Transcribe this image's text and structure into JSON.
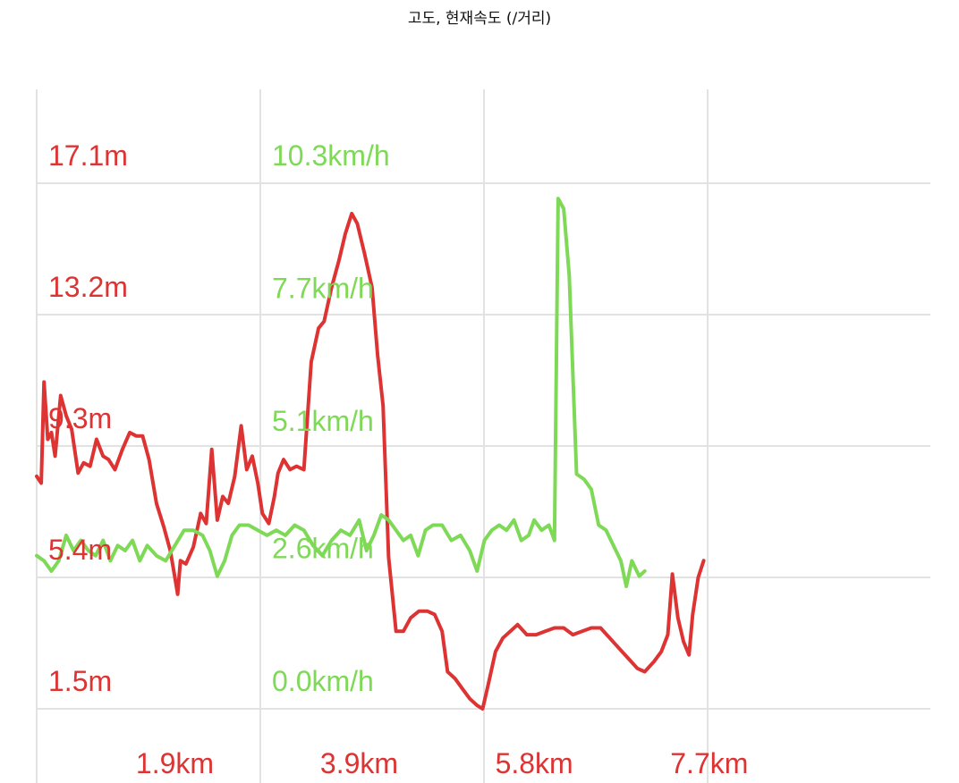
{
  "chart_data": {
    "type": "line",
    "title": "고도, 현재속도 (/거리)",
    "xlabel": "",
    "x_unit": "km",
    "xlim": [
      0.4,
      10.1
    ],
    "x_ticks": [
      "1.9km",
      "3.9km",
      "5.8km",
      "7.7km"
    ],
    "x_tick_values": [
      1.9,
      3.9,
      5.8,
      7.7
    ],
    "grid": true,
    "legend": "none",
    "y_axes": [
      {
        "series": "elevation",
        "unit": "m",
        "ylim": [
          1.5,
          17.1
        ],
        "tick_values": [
          1.5,
          5.4,
          9.3,
          13.2,
          17.1
        ],
        "ticks": [
          "1.5m",
          "5.4m",
          "9.3m",
          "13.2m",
          "17.1m"
        ]
      },
      {
        "series": "speed",
        "unit": "km/h",
        "ylim": [
          0.0,
          10.3
        ],
        "tick_values": [
          0.0,
          2.6,
          5.1,
          7.7,
          10.3
        ],
        "ticks": [
          "0.0km/h",
          "2.6km/h",
          "5.1km/h",
          "7.7km/h",
          "10.3km/h"
        ]
      }
    ],
    "series": [
      {
        "key": "elevation",
        "color": "#dd3333",
        "points": [
          [
            0.4,
            8.4
          ],
          [
            0.45,
            8.2
          ],
          [
            0.48,
            11.2
          ],
          [
            0.52,
            9.5
          ],
          [
            0.56,
            9.7
          ],
          [
            0.6,
            9.0
          ],
          [
            0.66,
            10.8
          ],
          [
            0.72,
            10.2
          ],
          [
            0.78,
            9.8
          ],
          [
            0.85,
            8.5
          ],
          [
            0.91,
            8.8
          ],
          [
            0.98,
            8.7
          ],
          [
            1.05,
            9.5
          ],
          [
            1.12,
            9.0
          ],
          [
            1.18,
            8.9
          ],
          [
            1.25,
            8.6
          ],
          [
            1.33,
            9.2
          ],
          [
            1.41,
            9.7
          ],
          [
            1.48,
            9.6
          ],
          [
            1.55,
            9.6
          ],
          [
            1.62,
            8.9
          ],
          [
            1.7,
            7.6
          ],
          [
            1.78,
            6.9
          ],
          [
            1.85,
            6.2
          ],
          [
            1.9,
            5.4
          ],
          [
            1.93,
            4.9
          ],
          [
            1.96,
            5.9
          ],
          [
            2.02,
            5.8
          ],
          [
            2.1,
            6.3
          ],
          [
            2.18,
            7.3
          ],
          [
            2.24,
            7.0
          ],
          [
            2.3,
            9.2
          ],
          [
            2.36,
            7.1
          ],
          [
            2.42,
            7.8
          ],
          [
            2.48,
            7.6
          ],
          [
            2.55,
            8.4
          ],
          [
            2.62,
            9.9
          ],
          [
            2.68,
            8.6
          ],
          [
            2.74,
            9.0
          ],
          [
            2.8,
            8.2
          ],
          [
            2.85,
            7.3
          ],
          [
            2.92,
            7.0
          ],
          [
            2.98,
            7.8
          ],
          [
            3.02,
            8.5
          ],
          [
            3.08,
            8.9
          ],
          [
            3.15,
            8.6
          ],
          [
            3.22,
            8.7
          ],
          [
            3.3,
            8.6
          ],
          [
            3.38,
            11.8
          ],
          [
            3.46,
            12.8
          ],
          [
            3.52,
            13.0
          ],
          [
            3.6,
            14.0
          ],
          [
            3.68,
            14.8
          ],
          [
            3.75,
            15.6
          ],
          [
            3.82,
            16.2
          ],
          [
            3.88,
            15.9
          ],
          [
            3.96,
            15.0
          ],
          [
            4.04,
            14.0
          ],
          [
            4.1,
            12.0
          ],
          [
            4.16,
            10.5
          ],
          [
            4.22,
            6.0
          ],
          [
            4.3,
            3.8
          ],
          [
            4.38,
            3.8
          ],
          [
            4.46,
            4.2
          ],
          [
            4.55,
            4.4
          ],
          [
            4.64,
            4.4
          ],
          [
            4.72,
            4.3
          ],
          [
            4.8,
            3.8
          ],
          [
            4.86,
            2.6
          ],
          [
            4.94,
            2.4
          ],
          [
            5.02,
            2.1
          ],
          [
            5.1,
            1.8
          ],
          [
            5.18,
            1.6
          ],
          [
            5.24,
            1.5
          ],
          [
            5.3,
            2.2
          ],
          [
            5.38,
            3.2
          ],
          [
            5.46,
            3.6
          ],
          [
            5.54,
            3.8
          ],
          [
            5.62,
            4.0
          ],
          [
            5.72,
            3.7
          ],
          [
            5.82,
            3.7
          ],
          [
            5.92,
            3.8
          ],
          [
            6.02,
            3.9
          ],
          [
            6.12,
            3.9
          ],
          [
            6.22,
            3.7
          ],
          [
            6.32,
            3.8
          ],
          [
            6.42,
            3.9
          ],
          [
            6.52,
            3.9
          ],
          [
            6.62,
            3.6
          ],
          [
            6.72,
            3.3
          ],
          [
            6.82,
            3.0
          ],
          [
            6.92,
            2.7
          ],
          [
            7.0,
            2.6
          ],
          [
            7.1,
            2.9
          ],
          [
            7.18,
            3.2
          ],
          [
            7.25,
            3.7
          ],
          [
            7.3,
            5.5
          ],
          [
            7.36,
            4.2
          ],
          [
            7.42,
            3.5
          ],
          [
            7.48,
            3.1
          ],
          [
            7.52,
            4.3
          ],
          [
            7.58,
            5.4
          ],
          [
            7.64,
            5.9
          ]
        ]
      },
      {
        "key": "speed",
        "color": "#7ed957",
        "points": [
          [
            0.4,
            3.0
          ],
          [
            0.48,
            2.9
          ],
          [
            0.56,
            2.7
          ],
          [
            0.64,
            2.9
          ],
          [
            0.72,
            3.4
          ],
          [
            0.8,
            3.1
          ],
          [
            0.88,
            3.3
          ],
          [
            0.96,
            3.1
          ],
          [
            1.04,
            3.0
          ],
          [
            1.12,
            3.3
          ],
          [
            1.2,
            2.9
          ],
          [
            1.28,
            3.2
          ],
          [
            1.36,
            3.1
          ],
          [
            1.44,
            3.3
          ],
          [
            1.52,
            2.9
          ],
          [
            1.6,
            3.2
          ],
          [
            1.7,
            3.0
          ],
          [
            1.8,
            2.9
          ],
          [
            1.9,
            3.2
          ],
          [
            2.0,
            3.5
          ],
          [
            2.1,
            3.5
          ],
          [
            2.2,
            3.4
          ],
          [
            2.28,
            3.1
          ],
          [
            2.36,
            2.6
          ],
          [
            2.44,
            2.9
          ],
          [
            2.52,
            3.4
          ],
          [
            2.6,
            3.6
          ],
          [
            2.7,
            3.6
          ],
          [
            2.8,
            3.5
          ],
          [
            2.9,
            3.4
          ],
          [
            3.0,
            3.5
          ],
          [
            3.1,
            3.4
          ],
          [
            3.2,
            3.6
          ],
          [
            3.3,
            3.5
          ],
          [
            3.4,
            3.2
          ],
          [
            3.5,
            3.0
          ],
          [
            3.6,
            3.3
          ],
          [
            3.7,
            3.5
          ],
          [
            3.8,
            3.4
          ],
          [
            3.9,
            3.7
          ],
          [
            3.98,
            3.1
          ],
          [
            4.06,
            3.4
          ],
          [
            4.14,
            3.8
          ],
          [
            4.22,
            3.7
          ],
          [
            4.3,
            3.5
          ],
          [
            4.38,
            3.3
          ],
          [
            4.46,
            3.4
          ],
          [
            4.54,
            3.0
          ],
          [
            4.62,
            3.5
          ],
          [
            4.7,
            3.6
          ],
          [
            4.8,
            3.6
          ],
          [
            4.9,
            3.3
          ],
          [
            5.0,
            3.4
          ],
          [
            5.1,
            3.1
          ],
          [
            5.18,
            2.7
          ],
          [
            5.26,
            3.3
          ],
          [
            5.34,
            3.5
          ],
          [
            5.42,
            3.6
          ],
          [
            5.5,
            3.5
          ],
          [
            5.58,
            3.7
          ],
          [
            5.66,
            3.3
          ],
          [
            5.74,
            3.4
          ],
          [
            5.8,
            3.7
          ],
          [
            5.88,
            3.5
          ],
          [
            5.96,
            3.6
          ],
          [
            6.02,
            3.3
          ],
          [
            6.06,
            10.0
          ],
          [
            6.12,
            9.8
          ],
          [
            6.18,
            8.5
          ],
          [
            6.26,
            4.6
          ],
          [
            6.34,
            4.5
          ],
          [
            6.42,
            4.3
          ],
          [
            6.5,
            3.6
          ],
          [
            6.58,
            3.5
          ],
          [
            6.66,
            3.2
          ],
          [
            6.74,
            2.9
          ],
          [
            6.8,
            2.4
          ],
          [
            6.86,
            2.9
          ],
          [
            6.94,
            2.6
          ],
          [
            7.0,
            2.7
          ]
        ]
      }
    ]
  }
}
